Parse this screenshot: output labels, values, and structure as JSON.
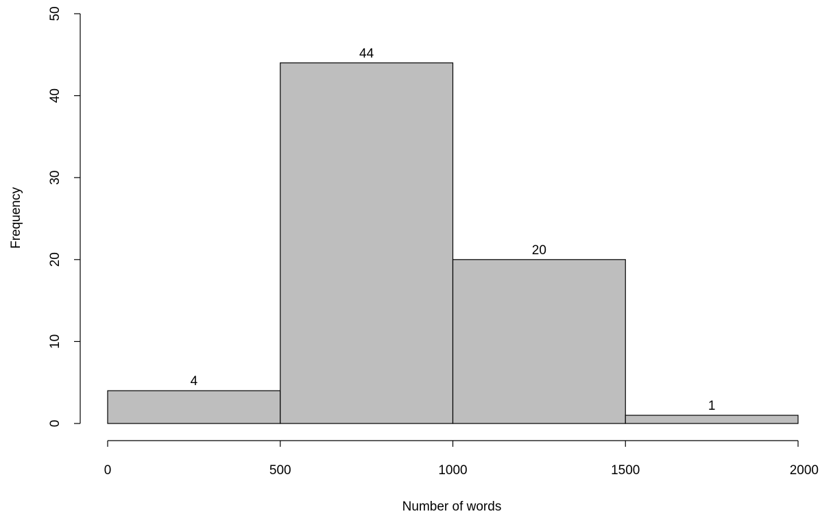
{
  "chart_data": {
    "type": "histogram",
    "bins": [
      {
        "from": 0,
        "to": 500,
        "count": 4,
        "label": "4"
      },
      {
        "from": 500,
        "to": 1000,
        "count": 44,
        "label": "44"
      },
      {
        "from": 1000,
        "to": 1500,
        "count": 20,
        "label": "20"
      },
      {
        "from": 1500,
        "to": 2000,
        "count": 1,
        "label": "1"
      }
    ],
    "xlabel": "Number of words",
    "ylabel": "Frequency",
    "xlim": [
      0,
      2000
    ],
    "ylim": [
      0,
      50
    ],
    "x_ticks": [
      0,
      500,
      1000,
      1500,
      2000
    ],
    "y_ticks": [
      0,
      10,
      20,
      30,
      40,
      50
    ],
    "bar_color": "#bebebe",
    "grid": false
  }
}
